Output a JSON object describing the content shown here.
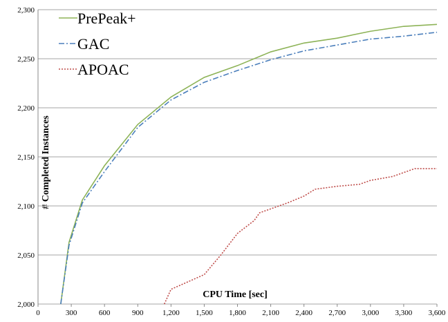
{
  "chart_data": {
    "type": "line",
    "xlabel": "CPU Time [sec]",
    "ylabel": "# Completed Instances",
    "xlim": [
      0,
      3600
    ],
    "xticks": [
      0,
      300,
      600,
      900,
      {
        "value": 1200,
        "label": "1,200"
      },
      {
        "value": 1500,
        "label": "1,500"
      },
      {
        "value": 1800,
        "label": "1,800"
      },
      {
        "value": 2100,
        "label": "2,100"
      },
      {
        "value": 2400,
        "label": "2,400"
      },
      {
        "value": 2700,
        "label": "2,700"
      },
      {
        "value": 3000,
        "label": "3,000"
      },
      {
        "value": 3300,
        "label": "3,300"
      },
      {
        "value": 3600,
        "label": "3,600"
      }
    ],
    "ylim": [
      2000,
      2300
    ],
    "yticks": [
      {
        "value": 2000,
        "label": "2,000"
      },
      {
        "value": 2050,
        "label": "2,050"
      },
      {
        "value": 2100,
        "label": "2,100"
      },
      {
        "value": 2150,
        "label": "2,150"
      },
      {
        "value": 2200,
        "label": "2,200"
      },
      {
        "value": 2250,
        "label": "2,250"
      },
      {
        "value": 2300,
        "label": "2,300"
      }
    ],
    "grid": true,
    "legend": "top-left",
    "series": [
      {
        "name": "PrePeak+",
        "color": "#8db357",
        "dash": "solid",
        "x": [
          205,
          280,
          400,
          600,
          900,
          1200,
          1500,
          1800,
          2100,
          2400,
          2700,
          3000,
          3300,
          3600
        ],
        "values": [
          2000,
          2063,
          2106,
          2141,
          2183,
          2211,
          2231,
          2243,
          2257,
          2266,
          2271,
          2278,
          2283,
          2285
        ]
      },
      {
        "name": "GAC",
        "color": "#4a7ebb",
        "dash": "dashdot",
        "x": [
          205,
          280,
          400,
          600,
          900,
          1200,
          1500,
          1800,
          2100,
          2400,
          2700,
          3000,
          3300,
          3600
        ],
        "values": [
          2000,
          2060,
          2103,
          2135,
          2180,
          2208,
          2226,
          2238,
          2249,
          2258,
          2264,
          2270,
          2273,
          2277
        ]
      },
      {
        "name": "APOAC",
        "color": "#be4b48",
        "dash": "dotted",
        "x": [
          1140,
          1200,
          1500,
          1650,
          1800,
          1950,
          2000,
          2100,
          2250,
          2400,
          2500,
          2700,
          2900,
          3000,
          3200,
          3300,
          3400,
          3600
        ],
        "values": [
          2000,
          2015,
          2030,
          2050,
          2072,
          2085,
          2093,
          2097,
          2103,
          2110,
          2117,
          2120,
          2122,
          2126,
          2130,
          2134,
          2138,
          2138
        ]
      }
    ]
  }
}
